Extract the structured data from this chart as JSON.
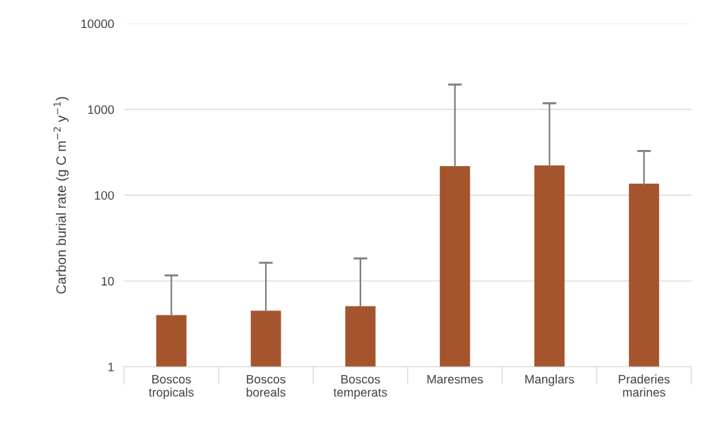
{
  "chart_data": {
    "type": "bar",
    "ylabel": "Carbon burial rate (g C m$^{−2}$ y$^{−1}$)",
    "categories": [
      "Boscos\ntropicals",
      "Boscos\nboreals",
      "Boscos\ntemperats",
      "Maresmes",
      "Manglars",
      "Praderies\nmarines"
    ],
    "values": [
      4.0,
      4.5,
      5.1,
      218,
      222,
      136
    ],
    "errors": [
      [
        4.0,
        11.6
      ],
      [
        4.5,
        16.3
      ],
      [
        5.1,
        18.3
      ],
      [
        218,
        1950
      ],
      [
        222,
        1180
      ],
      [
        136,
        328
      ]
    ],
    "color": "#a5552e",
    "log": "y",
    "ylim": [
      1,
      10000
    ],
    "yticks": [
      1,
      10,
      100,
      1000,
      10000
    ],
    "grid": "y"
  }
}
